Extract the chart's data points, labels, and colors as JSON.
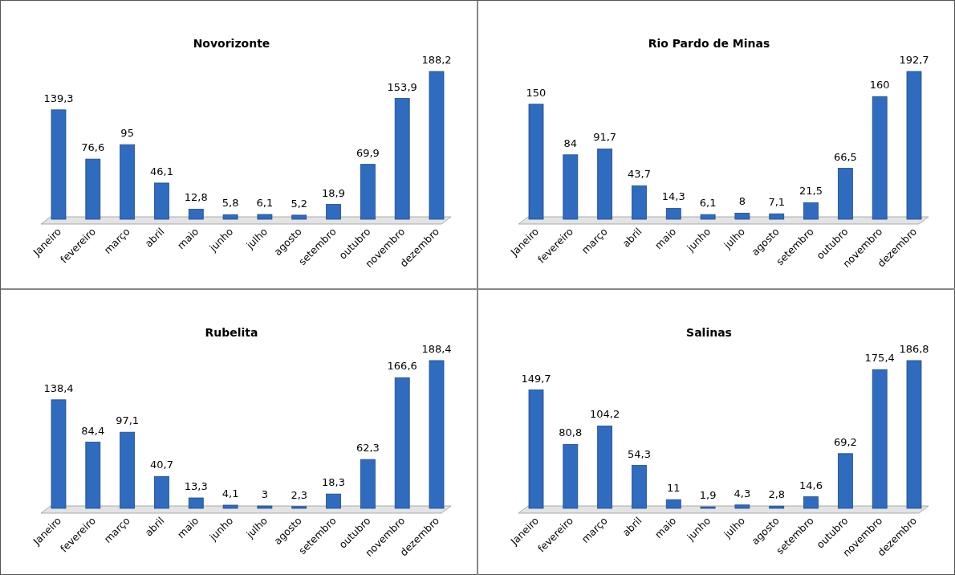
{
  "chart_data": [
    {
      "type": "bar",
      "title": "Novorizonte",
      "categories": [
        "Janeiro",
        "fevereiro",
        "março",
        "abril",
        "maio",
        "junho",
        "julho",
        "agosto",
        "setembro",
        "outubro",
        "novembro",
        "dezembro"
      ],
      "values": [
        139.3,
        76.6,
        95,
        46.1,
        12.8,
        5.8,
        6.1,
        5.2,
        18.9,
        69.9,
        153.9,
        188.2
      ],
      "value_labels": [
        "139,3",
        "76,6",
        "95",
        "46,1",
        "12,8",
        "5,8",
        "6,1",
        "5,2",
        "18,9",
        "69,9",
        "153,9",
        "188,2"
      ],
      "color": "#2f6cbf"
    },
    {
      "type": "bar",
      "title": "Rio Pardo de Minas",
      "categories": [
        "Janeiro",
        "fevereiro",
        "março",
        "abril",
        "maio",
        "junho",
        "julho",
        "agosto",
        "setembro",
        "outubro",
        "novembro",
        "dezembro"
      ],
      "values": [
        150,
        84,
        91.7,
        43.7,
        14.3,
        6.1,
        8,
        7.1,
        21.5,
        66.5,
        160,
        192.7
      ],
      "value_labels": [
        "150",
        "84",
        "91,7",
        "43,7",
        "14,3",
        "6,1",
        "8",
        "7,1",
        "21,5",
        "66,5",
        "160",
        "192,7"
      ],
      "color": "#2f6cbf"
    },
    {
      "type": "bar",
      "title": "Rubelita",
      "categories": [
        "Janeiro",
        "fevereiro",
        "março",
        "abril",
        "maio",
        "junho",
        "julho",
        "agosto",
        "setembro",
        "outubro",
        "novembro",
        "dezembro"
      ],
      "values": [
        138.4,
        84.4,
        97.1,
        40.7,
        13.3,
        4.1,
        3,
        2.3,
        18.3,
        62.3,
        166.6,
        188.4
      ],
      "value_labels": [
        "138,4",
        "84,4",
        "97,1",
        "40,7",
        "13,3",
        "4,1",
        "3",
        "2,3",
        "18,3",
        "62,3",
        "166,6",
        "188,4"
      ],
      "color": "#2f6cbf"
    },
    {
      "type": "bar",
      "title": "Salinas",
      "categories": [
        "Janeiro",
        "fevereiro",
        "março",
        "abril",
        "maio",
        "junho",
        "julho",
        "agosto",
        "setembro",
        "outubro",
        "novembro",
        "dezembro"
      ],
      "values": [
        149.7,
        80.8,
        104.2,
        54.3,
        11,
        1.9,
        4.3,
        2.8,
        14.6,
        69.2,
        175.4,
        186.8
      ],
      "value_labels": [
        "149,7",
        "80,8",
        "104,2",
        "54,3",
        "11",
        "1,9",
        "4,3",
        "2,8",
        "14,6",
        "69,2",
        "175,4",
        "186,8"
      ],
      "color": "#2f6cbf"
    }
  ]
}
